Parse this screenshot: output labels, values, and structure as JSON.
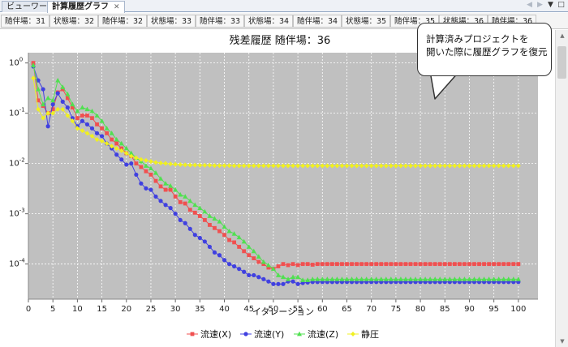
{
  "tabs": [
    {
      "label": "ビューワー",
      "active": false
    },
    {
      "label": "計算履歴グラフ",
      "active": true
    }
  ],
  "tab_close_glyph": "✕",
  "window_controls": {
    "back": "◀",
    "forward": "▶",
    "menu": "▼",
    "maximize": "□"
  },
  "subtabs": [
    "随伴場：31",
    "状態場：32",
    "随伴場：32",
    "状態場：33",
    "随伴場：33",
    "状態場：34",
    "随伴場：34",
    "状態場：35",
    "随伴場：35",
    "状態場：36",
    "随伴場：36"
  ],
  "callout": {
    "line1": "計算済みプロジェクトを",
    "line2": "開いた際に履歴グラフを復元"
  },
  "chart_data": {
    "type": "line",
    "title": "残差履歴 随伴場：36",
    "xlabel": "イタレーション",
    "ylabel": "",
    "yscale": "log",
    "xlim": [
      0,
      104
    ],
    "ylim": [
      2e-05,
      1.6
    ],
    "xticks": [
      0,
      5,
      10,
      15,
      20,
      25,
      30,
      35,
      40,
      45,
      50,
      55,
      60,
      65,
      70,
      75,
      80,
      85,
      90,
      95,
      100
    ],
    "yticks": [
      {
        "value": 1,
        "base": "10",
        "exp": "0"
      },
      {
        "value": 0.1,
        "base": "10",
        "exp": "-1"
      },
      {
        "value": 0.01,
        "base": "10",
        "exp": "-2"
      },
      {
        "value": 0.001,
        "base": "10",
        "exp": "-3"
      },
      {
        "value": 0.0001,
        "base": "10",
        "exp": "-4"
      }
    ],
    "grid": true,
    "legend_position": "bottom",
    "background": "#c0c0c0",
    "series": [
      {
        "name": "流速(X)",
        "color": "#f05050",
        "marker": "square",
        "y": [
          1.0,
          0.18,
          0.14,
          0.1,
          0.12,
          0.26,
          0.3,
          0.2,
          0.13,
          0.08,
          0.09,
          0.09,
          0.08,
          0.06,
          0.05,
          0.04,
          0.03,
          0.025,
          0.02,
          0.016,
          0.014,
          0.01,
          0.0085,
          0.007,
          0.006,
          0.0045,
          0.0035,
          0.003,
          0.003,
          0.0022,
          0.0017,
          0.0016,
          0.0012,
          0.00105,
          0.0009,
          0.00075,
          0.0006,
          0.00052,
          0.00045,
          0.00038,
          0.0003,
          0.00027,
          0.00022,
          0.00018,
          0.00015,
          0.00013,
          0.00011,
          0.0001,
          8.5e-05,
          8e-05,
          9e-05,
          0.0001,
          9.5e-05,
          0.0001,
          9.5e-05,
          0.0001,
          0.0001,
          9.7e-05,
          0.0001,
          0.0001,
          0.0001,
          0.0001,
          0.0001,
          0.0001,
          0.0001,
          0.0001,
          0.0001,
          0.0001,
          0.0001,
          0.0001,
          0.0001,
          0.0001,
          0.0001,
          0.0001,
          0.0001,
          0.0001,
          0.0001,
          0.0001,
          0.0001,
          0.0001,
          0.0001,
          0.0001,
          0.0001,
          0.0001,
          0.0001,
          0.0001,
          0.0001,
          0.0001,
          0.0001,
          0.0001,
          0.0001,
          0.0001,
          0.0001,
          0.0001,
          0.0001,
          0.0001,
          0.0001,
          0.0001,
          0.0001,
          0.0001
        ]
      },
      {
        "name": "流速(Y)",
        "color": "#4040e0",
        "marker": "circle",
        "y": [
          0.85,
          0.45,
          0.3,
          0.055,
          0.15,
          0.25,
          0.17,
          0.13,
          0.08,
          0.055,
          0.07,
          0.06,
          0.05,
          0.04,
          0.035,
          0.025,
          0.02,
          0.015,
          0.012,
          0.0095,
          0.01,
          0.006,
          0.004,
          0.0032,
          0.003,
          0.0022,
          0.0018,
          0.0015,
          0.0013,
          0.001,
          0.00075,
          0.00065,
          0.0005,
          0.00038,
          0.00033,
          0.00028,
          0.00022,
          0.00017,
          0.00015,
          0.00012,
          0.0001,
          9e-05,
          8e-05,
          7e-05,
          6e-05,
          6e-05,
          5.5e-05,
          5e-05,
          4.5e-05,
          4e-05,
          4e-05,
          4e-05,
          4.5e-05,
          4.5e-05,
          4e-05,
          4.2e-05,
          4.3e-05,
          4.4e-05,
          4.4e-05,
          4.4e-05,
          4.4e-05,
          4.4e-05,
          4.4e-05,
          4.4e-05,
          4.4e-05,
          4.4e-05,
          4.4e-05,
          4.4e-05,
          4.4e-05,
          4.4e-05,
          4.4e-05,
          4.4e-05,
          4.4e-05,
          4.4e-05,
          4.4e-05,
          4.4e-05,
          4.4e-05,
          4.4e-05,
          4.4e-05,
          4.4e-05,
          4.4e-05,
          4.4e-05,
          4.4e-05,
          4.4e-05,
          4.4e-05,
          4.4e-05,
          4.4e-05,
          4.4e-05,
          4.4e-05,
          4.4e-05,
          4.4e-05,
          4.4e-05,
          4.4e-05,
          4.4e-05,
          4.4e-05,
          4.4e-05,
          4.4e-05,
          4.4e-05,
          4.4e-05,
          4.4e-05
        ]
      },
      {
        "name": "流速(Z)",
        "color": "#50e050",
        "marker": "triangle",
        "y": [
          0.9,
          0.3,
          0.15,
          0.2,
          0.18,
          0.45,
          0.33,
          0.24,
          0.15,
          0.11,
          0.13,
          0.12,
          0.11,
          0.09,
          0.07,
          0.05,
          0.04,
          0.03,
          0.025,
          0.02,
          0.016,
          0.013,
          0.011,
          0.009,
          0.008,
          0.0065,
          0.005,
          0.004,
          0.0036,
          0.003,
          0.0024,
          0.0022,
          0.0018,
          0.0015,
          0.0013,
          0.0011,
          0.0009,
          0.0008,
          0.0007,
          0.00055,
          0.00045,
          0.0004,
          0.00034,
          0.00028,
          0.00022,
          0.00018,
          0.00014,
          0.00011,
          9.5e-05,
          8e-05,
          6e-05,
          5.5e-05,
          5e-05,
          5.5e-05,
          5.5e-05,
          4.8e-05,
          4.8e-05,
          5e-05,
          5e-05,
          5e-05,
          5e-05,
          5e-05,
          5e-05,
          5e-05,
          5e-05,
          5e-05,
          5e-05,
          5e-05,
          5e-05,
          5e-05,
          5e-05,
          5e-05,
          5e-05,
          5e-05,
          5e-05,
          5e-05,
          5e-05,
          5e-05,
          5e-05,
          5e-05,
          5e-05,
          5e-05,
          5e-05,
          5e-05,
          5e-05,
          5e-05,
          5e-05,
          5e-05,
          5e-05,
          5e-05,
          5e-05,
          5e-05,
          5e-05,
          5e-05,
          5e-05,
          5e-05,
          5e-05,
          5e-05,
          5e-05,
          5e-05
        ]
      },
      {
        "name": "静圧",
        "color": "#f0f020",
        "marker": "diamond",
        "y": [
          0.5,
          0.12,
          0.08,
          0.1,
          0.1,
          0.12,
          0.12,
          0.09,
          0.07,
          0.05,
          0.045,
          0.04,
          0.035,
          0.03,
          0.028,
          0.025,
          0.022,
          0.02,
          0.018,
          0.016,
          0.014,
          0.013,
          0.012,
          0.0115,
          0.011,
          0.0105,
          0.0102,
          0.01,
          0.0098,
          0.0096,
          0.0095,
          0.0094,
          0.0093,
          0.0093,
          0.0092,
          0.0092,
          0.0092,
          0.0091,
          0.0091,
          0.0091,
          0.0091,
          0.009,
          0.009,
          0.009,
          0.009,
          0.009,
          0.009,
          0.009,
          0.009,
          0.009,
          0.009,
          0.009,
          0.009,
          0.009,
          0.009,
          0.009,
          0.009,
          0.009,
          0.009,
          0.009,
          0.009,
          0.009,
          0.009,
          0.009,
          0.009,
          0.009,
          0.009,
          0.009,
          0.009,
          0.009,
          0.009,
          0.009,
          0.009,
          0.009,
          0.009,
          0.009,
          0.009,
          0.009,
          0.009,
          0.009,
          0.009,
          0.009,
          0.009,
          0.009,
          0.009,
          0.009,
          0.009,
          0.009,
          0.009,
          0.009,
          0.009,
          0.009,
          0.009,
          0.009,
          0.009,
          0.009,
          0.009,
          0.009,
          0.009,
          0.009
        ]
      }
    ]
  }
}
